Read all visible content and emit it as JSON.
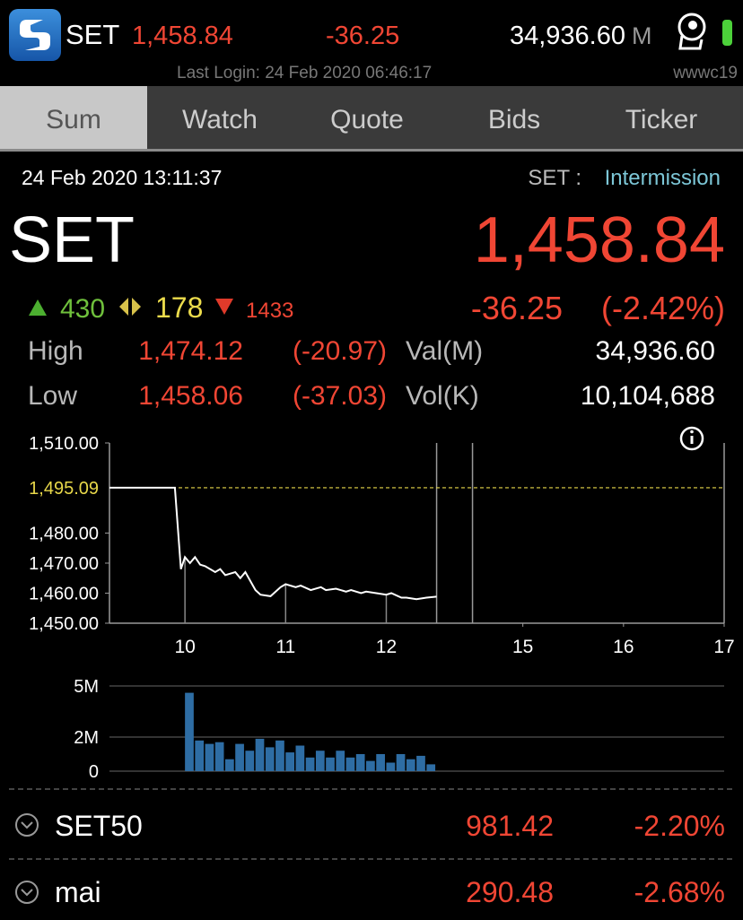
{
  "header": {
    "symbol": "SET",
    "last": "1,458.84",
    "change": "-36.25",
    "value": "34,936.60",
    "value_unit": "M",
    "last_login": "Last Login: 24 Feb 2020 06:46:17",
    "user": "wwwc19"
  },
  "tabs": [
    "Sum",
    "Watch",
    "Quote",
    "Bids",
    "Ticker"
  ],
  "summary": {
    "datetime": "24 Feb 2020 13:11:37",
    "market": "SET :",
    "status": "Intermission",
    "name": "SET",
    "last": "1,458.84",
    "advances": "430",
    "unchanged": "178",
    "declines": "1433",
    "change": "-36.25",
    "change_pct": "(-2.42%)",
    "rows": [
      {
        "label": "High",
        "value": "1,474.12",
        "change": "(-20.97)",
        "label2": "Val(M)",
        "value2": "34,936.60"
      },
      {
        "label": "Low",
        "value": "1,458.06",
        "change": "(-37.03)",
        "label2": "Vol(K)",
        "value2": "10,104,688"
      }
    ]
  },
  "chart_data": [
    {
      "type": "line",
      "color": "#ffffff",
      "x": [
        9.25,
        9.9,
        9.96,
        10.0,
        10.05,
        10.1,
        10.15,
        10.2,
        10.3,
        10.35,
        10.4,
        10.5,
        10.55,
        10.6,
        10.7,
        10.75,
        10.85,
        10.95,
        11.0,
        11.1,
        11.15,
        11.25,
        11.35,
        11.4,
        11.5,
        11.6,
        11.65,
        11.75,
        11.8,
        11.9,
        12.0,
        12.05,
        12.15,
        12.2,
        12.3,
        12.4,
        12.5
      ],
      "values": [
        1495.09,
        1495.09,
        1468,
        1472,
        1470,
        1472,
        1469.5,
        1469,
        1467,
        1468,
        1466,
        1467,
        1465,
        1467,
        1461,
        1459.5,
        1459,
        1462,
        1463,
        1462,
        1462.5,
        1461,
        1462,
        1461,
        1461.5,
        1460.5,
        1461,
        1460,
        1460.5,
        1460,
        1459.5,
        1460,
        1458.5,
        1458.5,
        1458,
        1458.5,
        1458.84
      ],
      "xlim": [
        9.25,
        17
      ],
      "xticks": [
        10,
        11,
        12,
        15,
        16,
        17
      ],
      "session_break": [
        12.5,
        14.5
      ],
      "ylim": [
        1450,
        1510
      ],
      "yticks": [
        {
          "value": 1450,
          "label": "1,450.00"
        },
        {
          "value": 1460,
          "label": "1,460.00"
        },
        {
          "value": 1470,
          "label": "1,470.00"
        },
        {
          "value": 1480,
          "label": "1,480.00"
        },
        {
          "value": 1510,
          "label": "1,510.00"
        }
      ],
      "reference": {
        "value": 1495.09,
        "label": "1,495.09",
        "color": "#e8d84a"
      }
    },
    {
      "type": "bar",
      "color": "#2e6da4",
      "x": [
        10.0,
        10.1,
        10.2,
        10.3,
        10.4,
        10.5,
        10.6,
        10.7,
        10.8,
        10.9,
        11.0,
        11.1,
        11.2,
        11.3,
        11.4,
        11.5,
        11.6,
        11.7,
        11.8,
        11.9,
        12.0,
        12.1,
        12.2,
        12.3,
        12.4
      ],
      "values": [
        4.6,
        1.8,
        1.6,
        1.7,
        0.7,
        1.6,
        1.2,
        1.9,
        1.4,
        1.8,
        1.1,
        1.5,
        0.8,
        1.2,
        0.8,
        1.2,
        0.8,
        1.0,
        0.6,
        1.0,
        0.5,
        1.0,
        0.7,
        0.9,
        0.4
      ],
      "xlim": [
        9.25,
        17
      ],
      "session_break": [
        12.5,
        14.5
      ],
      "ylim": [
        0,
        5
      ],
      "yticks": [
        0,
        {
          "value": 2,
          "label": "2M"
        },
        {
          "value": 5,
          "label": "5M"
        }
      ],
      "grid": true
    }
  ],
  "indices": [
    {
      "name": "SET50",
      "last": "981.42",
      "change_pct": "-2.20%"
    },
    {
      "name": "mai",
      "last": "290.48",
      "change_pct": "-2.68%"
    }
  ]
}
